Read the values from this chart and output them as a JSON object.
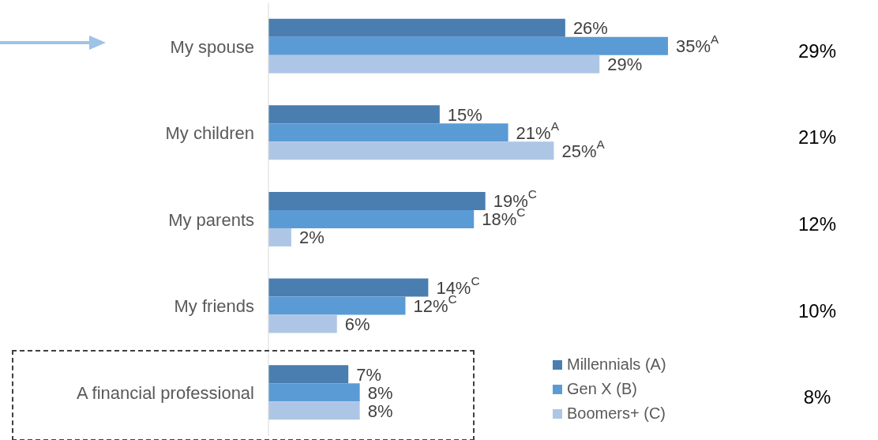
{
  "chart_data": {
    "type": "bar",
    "orientation": "horizontal",
    "categories": [
      "My spouse",
      "My children",
      "My parents",
      "My friends",
      "A financial professional"
    ],
    "series": [
      {
        "name": "Millennials (A)",
        "color": "#4a7eb0",
        "values": [
          26,
          15,
          19,
          14,
          7
        ],
        "value_labels": [
          "26%",
          "15%",
          "19%$^{C}$",
          "14%$^{C}$",
          "7%"
        ]
      },
      {
        "name": "Gen X (B)",
        "color": "#5b9bd5",
        "values": [
          35,
          21,
          18,
          12,
          8
        ],
        "value_labels": [
          "35%$^{A}$",
          "21%$^{A}$",
          "18%$^{C}$",
          "12%$^{C}$",
          "8%"
        ]
      },
      {
        "name": "Boomers+ (C)",
        "color": "#aec6e6",
        "values": [
          29,
          25,
          2,
          6,
          8
        ],
        "value_labels": [
          "29%",
          "25%$^{A}$",
          "2%",
          "6%",
          "8%"
        ]
      }
    ],
    "annotations": [
      "29%",
      "21%",
      "12%",
      "10%",
      "8%"
    ],
    "legend": "bottom right",
    "grid": false
  }
}
